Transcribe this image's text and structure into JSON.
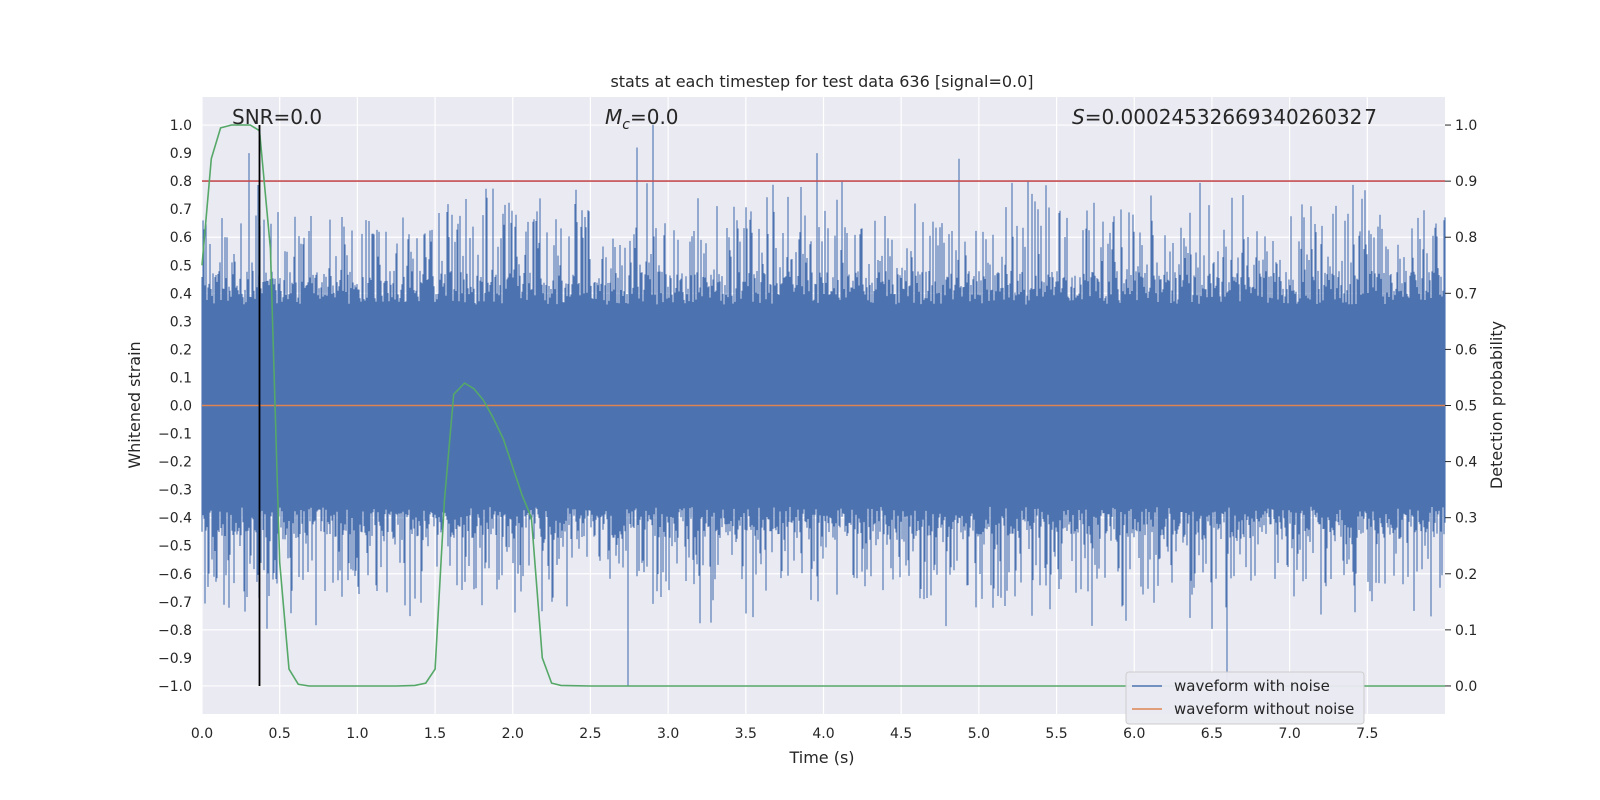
{
  "chart_data": {
    "type": "line",
    "title": "stats at each timestep for test data 636 [signal=0.0]",
    "xlabel": "Time (s)",
    "ylabel": "Whitened strain",
    "y2label": "Detection probability",
    "xlim": [
      0.0,
      8.0
    ],
    "ylim": [
      -1.1,
      1.1
    ],
    "y2lim": [
      -0.05,
      1.05
    ],
    "xticks": [
      "0.0",
      "0.5",
      "1.0",
      "1.5",
      "2.0",
      "2.5",
      "3.0",
      "3.5",
      "4.0",
      "4.5",
      "5.0",
      "5.5",
      "6.0",
      "6.5",
      "7.0",
      "7.5"
    ],
    "yticks": [
      "1.0",
      "0.9",
      "0.8",
      "0.7",
      "0.6",
      "0.5",
      "0.4",
      "0.3",
      "0.2",
      "0.1",
      "0.0",
      "−0.1",
      "−0.2",
      "−0.3",
      "−0.4",
      "−0.5",
      "−0.6",
      "−0.7",
      "−0.8",
      "−0.9",
      "−1.0"
    ],
    "y2ticks": [
      "1.0",
      "0.9",
      "0.8",
      "0.7",
      "0.6",
      "0.5",
      "0.4",
      "0.3",
      "0.2",
      "0.1",
      "0.0"
    ],
    "grid": true,
    "legend_position": "lower right",
    "annotations": {
      "snr": "SNR=0.0",
      "mc_symbol": "M",
      "mc_sub": "c",
      "mc_value": "=0.0",
      "s_symbol": "S",
      "s_value": "=0.0002453266934026032 7"
    },
    "series": [
      {
        "name": "waveform with noise",
        "axis": "left",
        "color": "#4c72b0",
        "description_values": "dense whitened noise, bulk between -0.4 and 0.4, peaks reaching about 1.0 (at t=2.9) and -1.0 (at t=2.74)",
        "notable_peaks": [
          {
            "x": 0.3,
            "y": 0.9
          },
          {
            "x": 2.8,
            "y": 0.92
          },
          {
            "x": 2.9,
            "y": 1.0
          },
          {
            "x": 3.96,
            "y": 0.9
          },
          {
            "x": 4.87,
            "y": 0.88
          },
          {
            "x": 2.74,
            "y": -1.0
          },
          {
            "x": 6.6,
            "y": -0.98
          }
        ]
      },
      {
        "name": "waveform without noise",
        "axis": "left",
        "color": "#dd8452",
        "x": [
          0.0,
          8.0
        ],
        "y": [
          0.0,
          0.0
        ]
      },
      {
        "name": "detection threshold",
        "axis": "right",
        "color": "#c44e52",
        "x": [
          0.0,
          8.0
        ],
        "y": [
          0.9,
          0.9
        ]
      },
      {
        "name": "detection probability",
        "axis": "right",
        "color": "#55a868",
        "x": [
          0.0,
          0.06,
          0.12,
          0.19,
          0.25,
          0.31,
          0.37,
          0.44,
          0.5,
          0.56,
          0.62,
          0.69,
          0.75,
          1.0,
          1.25,
          1.37,
          1.44,
          1.5,
          1.56,
          1.62,
          1.69,
          1.75,
          1.81,
          1.87,
          1.94,
          2.0,
          2.06,
          2.12,
          2.19,
          2.25,
          2.31,
          2.5,
          8.0
        ],
        "y": [
          0.75,
          0.94,
          0.995,
          1.0,
          1.0,
          1.0,
          0.99,
          0.78,
          0.22,
          0.03,
          0.003,
          0.0,
          0.0,
          0.0,
          0.0,
          0.001,
          0.005,
          0.03,
          0.33,
          0.52,
          0.54,
          0.53,
          0.51,
          0.48,
          0.44,
          0.39,
          0.34,
          0.3,
          0.05,
          0.005,
          0.001,
          0.0,
          0.0
        ]
      },
      {
        "name": "marker",
        "axis": "left",
        "color": "#000000",
        "x": [
          0.37,
          0.37
        ],
        "y": [
          -1.0,
          1.0
        ]
      }
    ]
  },
  "colors": {
    "plot_background": "#eaeaf2",
    "grid": "#ffffff",
    "noise": "#4c72b0",
    "clean": "#dd8452",
    "threshold": "#c44e52",
    "probability": "#55a868",
    "marker": "#000000"
  },
  "legend": {
    "items": [
      {
        "label": "waveform with noise",
        "color": "#4c72b0"
      },
      {
        "label": "waveform without noise",
        "color": "#dd8452"
      }
    ]
  }
}
